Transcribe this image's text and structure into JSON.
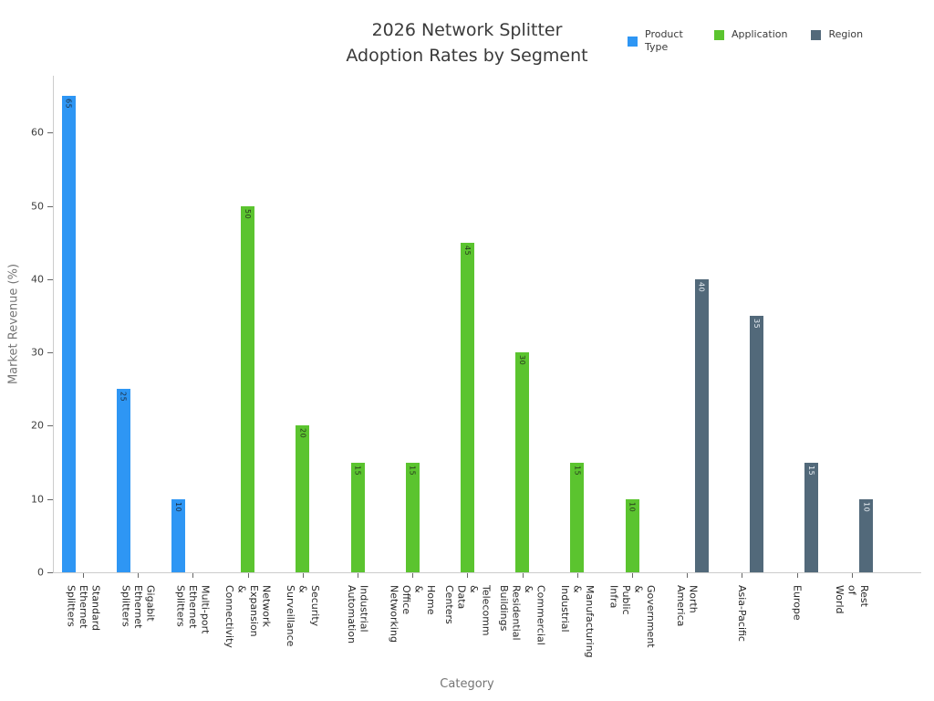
{
  "title": {
    "line1": "2026 Network Splitter",
    "line2": "Adoption Rates by Segment"
  },
  "axes": {
    "x_label": "Category",
    "y_label": "Market Revenue (%)"
  },
  "chart_data": {
    "type": "bar",
    "title": "2026 Network Splitter Adoption Rates by Segment",
    "xlabel": "Category",
    "ylabel": "Market Revenue (%)",
    "ylim": [
      0,
      67.8
    ],
    "y_ticks": [
      0,
      10,
      20,
      30,
      40,
      50,
      60
    ],
    "grid": false,
    "legend_position": "top-right",
    "series": [
      {
        "name": "Product Type",
        "color": "#2e96f4",
        "value_label_color": "#1c2b3a"
      },
      {
        "name": "Application",
        "color": "#5bc42f",
        "value_label_color": "#26381c"
      },
      {
        "name": "Region",
        "color": "#52697a",
        "value_label_color": "#e9eff4"
      }
    ],
    "bars": [
      {
        "category": "Standard Ethernet Splitters",
        "tick_lines": [
          "Standard",
          "Ethernet",
          "Splitters"
        ],
        "series": "Product Type",
        "value": 65
      },
      {
        "category": "Gigabit Ethernet Splitters",
        "tick_lines": [
          "Gigabit",
          "Ethernet",
          "Splitters"
        ],
        "series": "Product Type",
        "value": 25
      },
      {
        "category": "Multi-port Ethernet Splitters",
        "tick_lines": [
          "Multi-port",
          "Ethernet",
          "Splitters"
        ],
        "series": "Product Type",
        "value": 10
      },
      {
        "category": "Network Expansion & Connectivity",
        "tick_lines": [
          "Network",
          "Expansion",
          "&",
          "Connectivity"
        ],
        "series": "Application",
        "value": 50
      },
      {
        "category": "Security & Surveillance",
        "tick_lines": [
          "Security",
          "&",
          "Surveillance"
        ],
        "series": "Application",
        "value": 20
      },
      {
        "category": "Industrial Automation",
        "tick_lines": [
          "Industrial",
          "Automation"
        ],
        "series": "Application",
        "value": 15
      },
      {
        "category": "Home & Office Networking",
        "tick_lines": [
          "Home",
          "&",
          "Office",
          "Networking"
        ],
        "series": "Application",
        "value": 15
      },
      {
        "category": "Telecomm & Data Centers",
        "tick_lines": [
          "Telecomm",
          "&",
          "Data",
          "Centers"
        ],
        "series": "Application",
        "value": 45
      },
      {
        "category": "Commercial & Residential Buildings",
        "tick_lines": [
          "Commercial",
          "&",
          "Residential",
          "Buildings"
        ],
        "series": "Application",
        "value": 30
      },
      {
        "category": "Manufacturing & Industrial",
        "tick_lines": [
          "Manufacturing",
          "&",
          "Industrial"
        ],
        "series": "Application",
        "value": 15
      },
      {
        "category": "Government & Public Infra",
        "tick_lines": [
          "Government",
          "&",
          "Public",
          "Infra"
        ],
        "series": "Application",
        "value": 10
      },
      {
        "category": "North America",
        "tick_lines": [
          "North",
          "America"
        ],
        "series": "Region",
        "value": 40
      },
      {
        "category": "Asia-Pacific",
        "tick_lines": [
          "Asia-Pacific"
        ],
        "series": "Region",
        "value": 35
      },
      {
        "category": "Europe",
        "tick_lines": [
          "Europe"
        ],
        "series": "Region",
        "value": 15
      },
      {
        "category": "Rest of World",
        "tick_lines": [
          "Rest",
          "of",
          "World"
        ],
        "series": "Region",
        "value": 10
      }
    ]
  }
}
